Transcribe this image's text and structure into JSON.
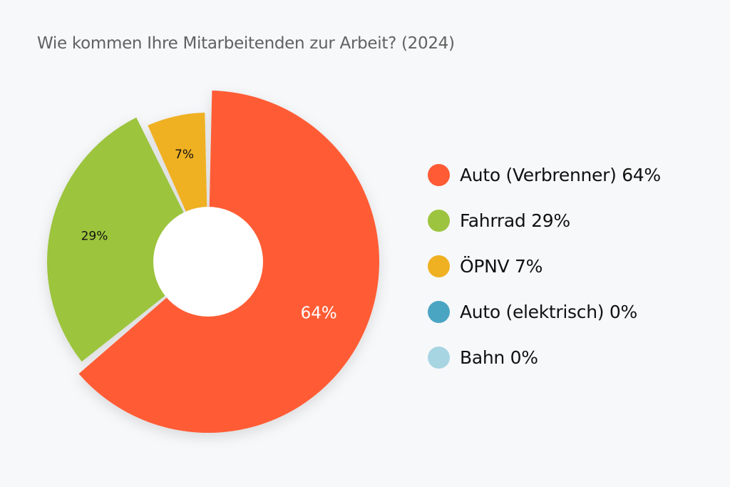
{
  "title": "Wie kommen Ihre Mitarbeitenden zur Arbeit? (2024)",
  "chart_data": {
    "type": "pie",
    "title": "Wie kommen Ihre Mitarbeitenden zur Arbeit? (2024)",
    "donut": true,
    "legend_position": "right",
    "slices": [
      {
        "name": "Auto (Verbrenner)",
        "value": 64,
        "label": "64%",
        "legend": "Auto (Verbrenner) 64%",
        "color": "#ff5b35",
        "label_color": "#ffffff"
      },
      {
        "name": "Fahrrad",
        "value": 29,
        "label": "29%",
        "legend": "Fahrrad 29%",
        "color": "#9cc43e",
        "label_color": "#111111"
      },
      {
        "name": "ÖPNV",
        "value": 7,
        "label": "7%",
        "legend": "ÖPNV 7%",
        "color": "#efb022",
        "label_color": "#111111"
      },
      {
        "name": "Auto (elektrisch)",
        "value": 0,
        "label": "",
        "legend": "Auto (elektrisch) 0%",
        "color": "#4aa5c3"
      },
      {
        "name": "Bahn",
        "value": 0,
        "label": "",
        "legend": "Bahn 0%",
        "color": "#a8d5e2"
      }
    ]
  }
}
